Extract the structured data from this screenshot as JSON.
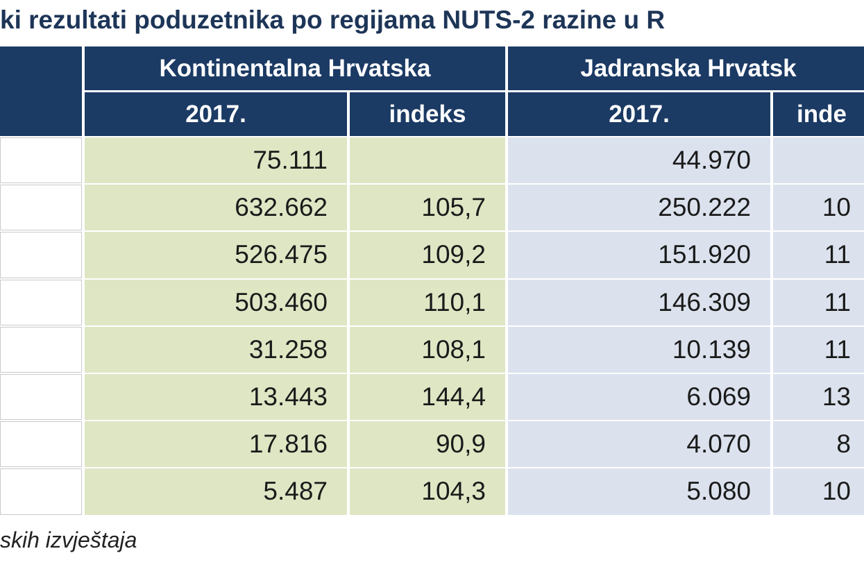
{
  "header": {
    "title": "ki rezultati poduzetnika po regijama NUTS-2 razine u R"
  },
  "table": {
    "group_headers": [
      "Kontinentalna Hrvatska",
      "Jadranska Hrvatsk"
    ],
    "sub_headers": [
      "2017.",
      "indeks",
      "2017.",
      "inde"
    ],
    "rows": [
      [
        "75.111",
        null,
        "44.970",
        null
      ],
      [
        "632.662",
        "105,7",
        "250.222",
        "10"
      ],
      [
        "526.475",
        "109,2",
        "151.920",
        "11"
      ],
      [
        "503.460",
        "110,1",
        "146.309",
        "11"
      ],
      [
        "31.258",
        "108,1",
        "10.139",
        "11"
      ],
      [
        "13.443",
        "144,4",
        "6.069",
        "13"
      ],
      [
        "17.816",
        "90,9",
        "4.070",
        "8"
      ],
      [
        "5.487",
        "104,3",
        "5.080",
        "10"
      ]
    ]
  },
  "footer": {
    "note": "skih izvještaja"
  }
}
